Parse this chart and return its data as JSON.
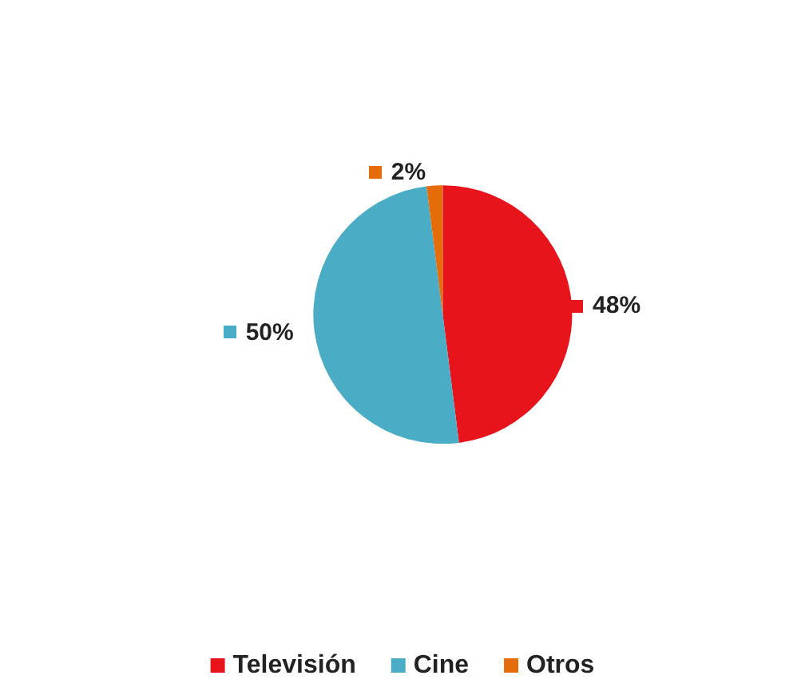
{
  "chart_data": {
    "type": "pie",
    "categories": [
      "Televisión",
      "Cine",
      "Otros"
    ],
    "values": [
      48,
      50,
      2
    ],
    "colors": [
      "#e8141b",
      "#4bacc6",
      "#e46c0a"
    ],
    "value_labels": [
      "48%",
      "50%",
      "2%"
    ],
    "legend": "bottom"
  }
}
